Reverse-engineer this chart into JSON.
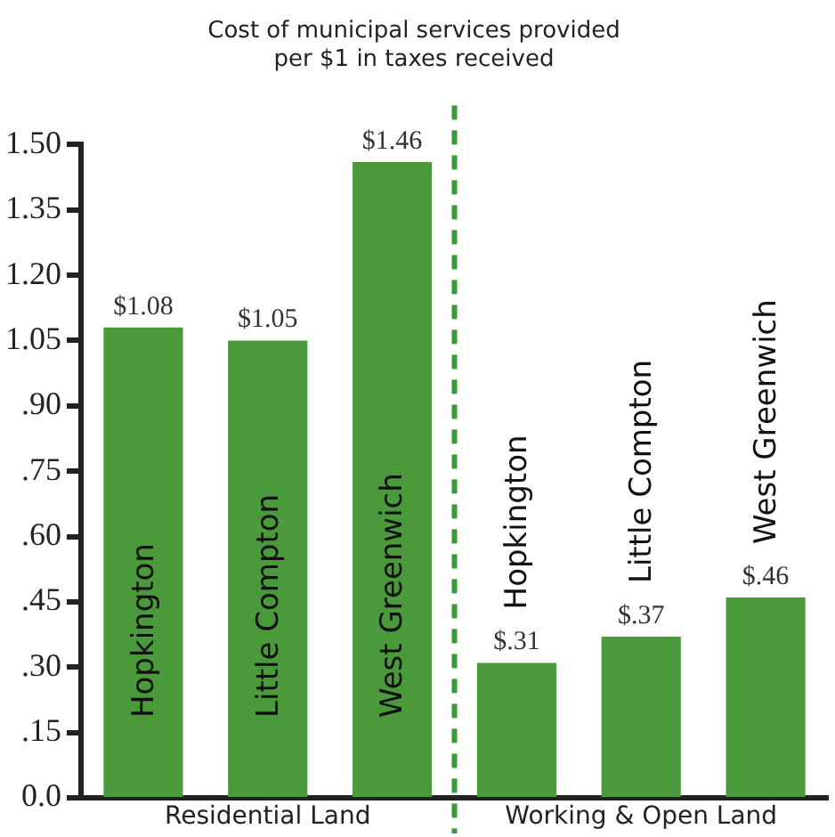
{
  "chart_data": {
    "type": "bar",
    "title": "Cost of municipal services provided\nper $1 in taxes received",
    "categories": [
      "Hopkington",
      "Little Compton",
      "West Greenwich",
      "Hopkington",
      "Little Compton",
      "West Greenwich"
    ],
    "values": [
      1.08,
      1.05,
      1.46,
      0.31,
      0.37,
      0.46
    ],
    "value_labels": [
      "$1.08",
      "$1.05",
      "$1.46",
      "$.31",
      "$.37",
      "$.46"
    ],
    "color": "#4a9a3c",
    "ylim": [
      0,
      1.5
    ],
    "yticks": [
      {
        "value": 0,
        "label": "0.0"
      },
      {
        "value": 0.15,
        "label": ".15"
      },
      {
        "value": 0.3,
        "label": ".30"
      },
      {
        "value": 0.45,
        "label": ".45"
      },
      {
        "value": 0.6,
        "label": ".60"
      },
      {
        "value": 0.75,
        "label": ".75"
      },
      {
        "value": 0.9,
        "label": ".90"
      },
      {
        "value": 1.05,
        "label": "1.05"
      },
      {
        "value": 1.2,
        "label": "1.20"
      },
      {
        "value": 1.35,
        "label": "1.35"
      },
      {
        "value": 1.5,
        "label": "1.50"
      }
    ],
    "annotations": [
      "Residential Land",
      "Working & Open Land"
    ],
    "grid": false,
    "legend": false
  }
}
